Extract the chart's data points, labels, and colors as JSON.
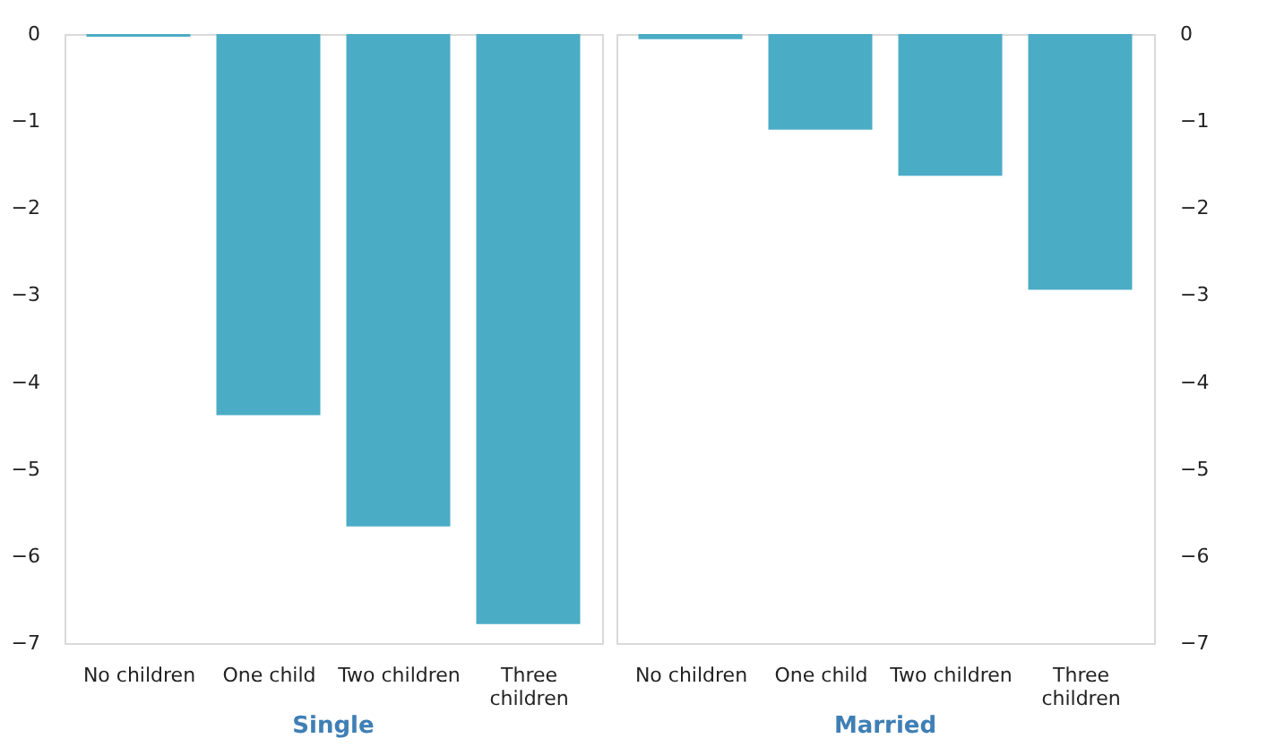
{
  "chart_data": [
    {
      "type": "bar",
      "title": "Single",
      "categories": [
        "No children",
        "One child",
        "Two children",
        "Three children"
      ],
      "values": [
        -0.03,
        -4.38,
        -5.66,
        -6.78
      ],
      "color": "#4bacc6",
      "ylim": [
        -7,
        0
      ],
      "yticks": [
        0,
        -1,
        -2,
        -3,
        -4,
        -5,
        -6,
        -7
      ],
      "grid": false
    },
    {
      "type": "bar",
      "title": "Married",
      "categories": [
        "No children",
        "One child",
        "Two children",
        "Three children"
      ],
      "values": [
        -0.06,
        -1.1,
        -1.63,
        -2.94
      ],
      "color": "#4bacc6",
      "ylim": [
        -7,
        0
      ],
      "yticks": [
        0,
        -1,
        -2,
        -3,
        -4,
        -5,
        -6,
        -7
      ],
      "grid": false
    }
  ]
}
